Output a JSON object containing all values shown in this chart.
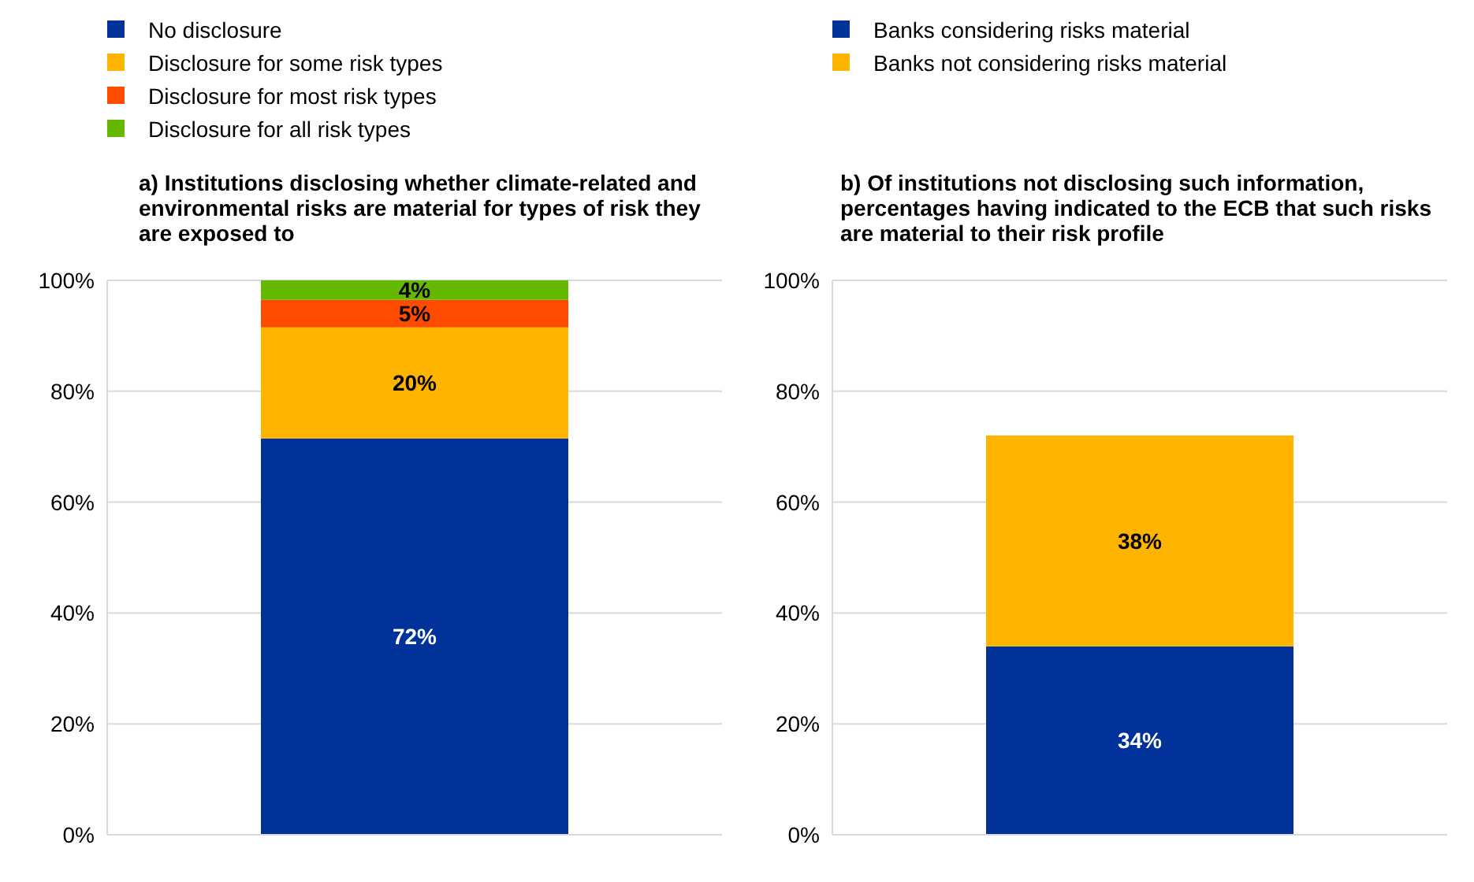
{
  "chart_data": [
    {
      "type": "bar",
      "title": "a) Institutions disclosing whether climate-related and environmental risks are material for types of risk they are exposed to",
      "categories": [
        null
      ],
      "stacked": true,
      "series": [
        {
          "name": "No disclosure",
          "color": "#003299",
          "values": [
            71.5
          ],
          "value_labels": [
            "72%"
          ]
        },
        {
          "name": "Disclosure for some risk types",
          "color": "#ffb400",
          "values": [
            20
          ],
          "value_labels": [
            "20%"
          ]
        },
        {
          "name": "Disclosure for most risk types",
          "color": "#ff4b00",
          "values": [
            5
          ],
          "value_labels": [
            "5%"
          ]
        },
        {
          "name": "Disclosure for all risk types",
          "color": "#65b800",
          "values": [
            3.5
          ],
          "value_labels": [
            "4%"
          ]
        }
      ],
      "ylim": [
        0,
        100
      ],
      "yticks": [
        {
          "value": 0,
          "label": "0%"
        },
        {
          "value": 20,
          "label": "20%"
        },
        {
          "value": 40,
          "label": "40%"
        },
        {
          "value": 60,
          "label": "60%"
        },
        {
          "value": 80,
          "label": "80%"
        },
        {
          "value": 100,
          "label": "100%"
        }
      ],
      "grid": "y",
      "legend": "top left",
      "tick_labels": "y"
    },
    {
      "type": "bar",
      "title": "b) Of institutions not disclosing such information, percentages having indicated to the ECB that such risks are material to their risk profile",
      "categories": [
        null
      ],
      "stacked": true,
      "series": [
        {
          "name": "Banks considering risks material",
          "color": "#003299",
          "values": [
            34
          ],
          "value_labels": [
            "34%"
          ]
        },
        {
          "name": "Banks not considering risks material",
          "color": "#ffb400",
          "values": [
            38
          ],
          "value_labels": [
            "38%"
          ]
        }
      ],
      "ylim": [
        0,
        100
      ],
      "yticks": [
        {
          "value": 0,
          "label": "0%"
        },
        {
          "value": 20,
          "label": "20%"
        },
        {
          "value": 40,
          "label": "40%"
        },
        {
          "value": 60,
          "label": "60%"
        },
        {
          "value": 80,
          "label": "80%"
        },
        {
          "value": 100,
          "label": "100%"
        }
      ],
      "grid": "y",
      "legend": "top left",
      "tick_labels": "y"
    }
  ]
}
